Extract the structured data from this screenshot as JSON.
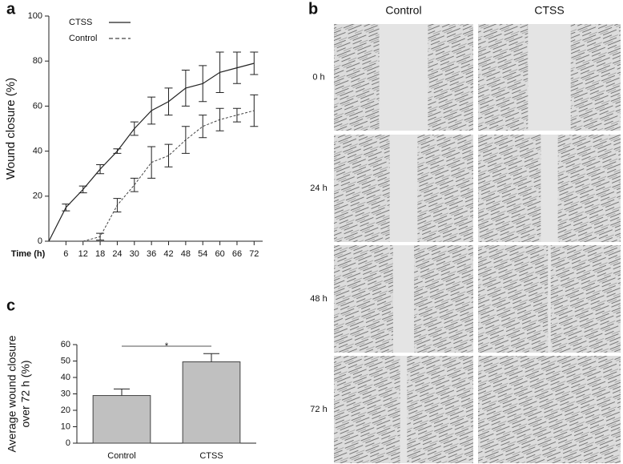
{
  "chart_data": [
    {
      "panel": "a",
      "type": "line",
      "ylabel": "Wound closure (%)",
      "xlabel": "Time (h)",
      "x": [
        0,
        6,
        12,
        18,
        24,
        30,
        36,
        42,
        48,
        54,
        60,
        66,
        72
      ],
      "series": [
        {
          "name": "CTSS",
          "color": "#222222",
          "style": "solid",
          "values": [
            0,
            15,
            23,
            32,
            40,
            50,
            58,
            62,
            68,
            70,
            75,
            77,
            79
          ],
          "errors": [
            null,
            1.5,
            1.5,
            2,
            1,
            3,
            6,
            6,
            8,
            8,
            9,
            7,
            5
          ]
        },
        {
          "name": "Control",
          "color": "#444444",
          "style": "dashed",
          "values": [
            null,
            null,
            0,
            2,
            16,
            25,
            35,
            38,
            45,
            51,
            54,
            56,
            58
          ],
          "errors": [
            null,
            null,
            null,
            1.5,
            3,
            3,
            7,
            5,
            6,
            5,
            5,
            3,
            7
          ]
        }
      ],
      "xlim": [
        0,
        75
      ],
      "xticks": [
        6,
        12,
        18,
        24,
        30,
        36,
        42,
        48,
        54,
        60,
        66,
        72
      ],
      "ylim": [
        0,
        100
      ],
      "yticks": [
        0,
        20,
        40,
        60,
        80,
        100
      ],
      "legend": "top-left",
      "grid": false
    },
    {
      "panel": "c",
      "type": "bar",
      "ylabel": [
        "Average wound closure",
        "over 72 h (%)"
      ],
      "categories": [
        "Control",
        "CTSS"
      ],
      "values": [
        29,
        49.5
      ],
      "errors": [
        4,
        5
      ],
      "color": "#c0c0c0",
      "significance": "*",
      "ylim": [
        0,
        60
      ],
      "yticks": [
        0,
        10,
        20,
        30,
        40,
        50,
        60
      ],
      "grid": false
    }
  ],
  "image_grid": {
    "panel": "b",
    "columns": [
      "Control",
      "CTSS"
    ],
    "rows": [
      "0 h",
      "24 h",
      "48 h",
      "72 h"
    ]
  }
}
